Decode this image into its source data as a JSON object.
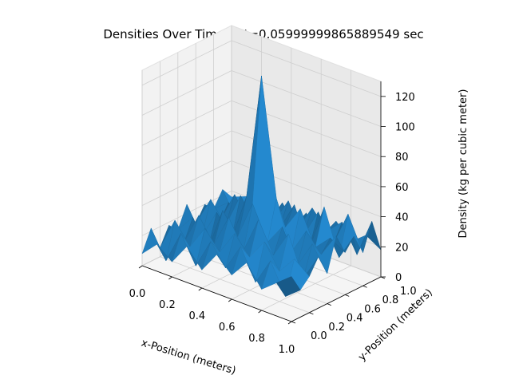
{
  "chart_data": {
    "type": "surface3d",
    "title": "Densities Over Time at t=0.05999999865889549 sec",
    "xlabel": "x-Position (meters)",
    "ylabel": "y-Position (meters)",
    "zlabel": "Density (kg per cubic meter)",
    "xlim": [
      0,
      1
    ],
    "ylim": [
      0,
      1
    ],
    "zlim": [
      0,
      130
    ],
    "x_ticks": [
      "0.0",
      "0.2",
      "0.4",
      "0.6",
      "0.8",
      "1.0"
    ],
    "y_ticks": [
      "0.0",
      "0.2",
      "0.4",
      "0.6",
      "0.8",
      "1.0"
    ],
    "z_ticks": [
      "0",
      "20",
      "40",
      "60",
      "80",
      "100",
      "120"
    ],
    "surface_color": "#1f77b4",
    "grid": true,
    "x": [
      0.0,
      0.1,
      0.2,
      0.3,
      0.4,
      0.5,
      0.6,
      0.7,
      0.8,
      0.9,
      1.0
    ],
    "y": [
      0.0,
      0.1,
      0.2,
      0.3,
      0.4,
      0.5,
      0.6,
      0.7,
      0.8,
      0.9,
      1.0
    ],
    "z": [
      [
        8,
        22,
        6,
        18,
        12,
        26,
        10,
        20,
        14,
        24,
        16
      ],
      [
        18,
        4,
        28,
        10,
        24,
        8,
        30,
        12,
        22,
        6,
        20
      ],
      [
        10,
        26,
        14,
        32,
        6,
        28,
        16,
        34,
        10,
        26,
        14
      ],
      [
        24,
        8,
        30,
        16,
        36,
        14,
        40,
        18,
        32,
        12,
        22
      ],
      [
        12,
        28,
        18,
        38,
        22,
        46,
        24,
        36,
        20,
        30,
        10
      ],
      [
        26,
        14,
        34,
        20,
        48,
        130,
        44,
        22,
        38,
        16,
        24
      ],
      [
        16,
        32,
        22,
        44,
        26,
        52,
        30,
        42,
        18,
        34,
        12
      ],
      [
        28,
        12,
        36,
        24,
        40,
        20,
        46,
        16,
        38,
        22,
        26
      ],
      [
        14,
        30,
        20,
        42,
        18,
        38,
        24,
        48,
        20,
        32,
        16
      ],
      [
        22,
        10,
        32,
        16,
        36,
        26,
        34,
        18,
        44,
        14,
        24
      ],
      [
        30,
        18,
        24,
        34,
        20,
        42,
        28,
        36,
        22,
        40,
        18
      ]
    ]
  }
}
